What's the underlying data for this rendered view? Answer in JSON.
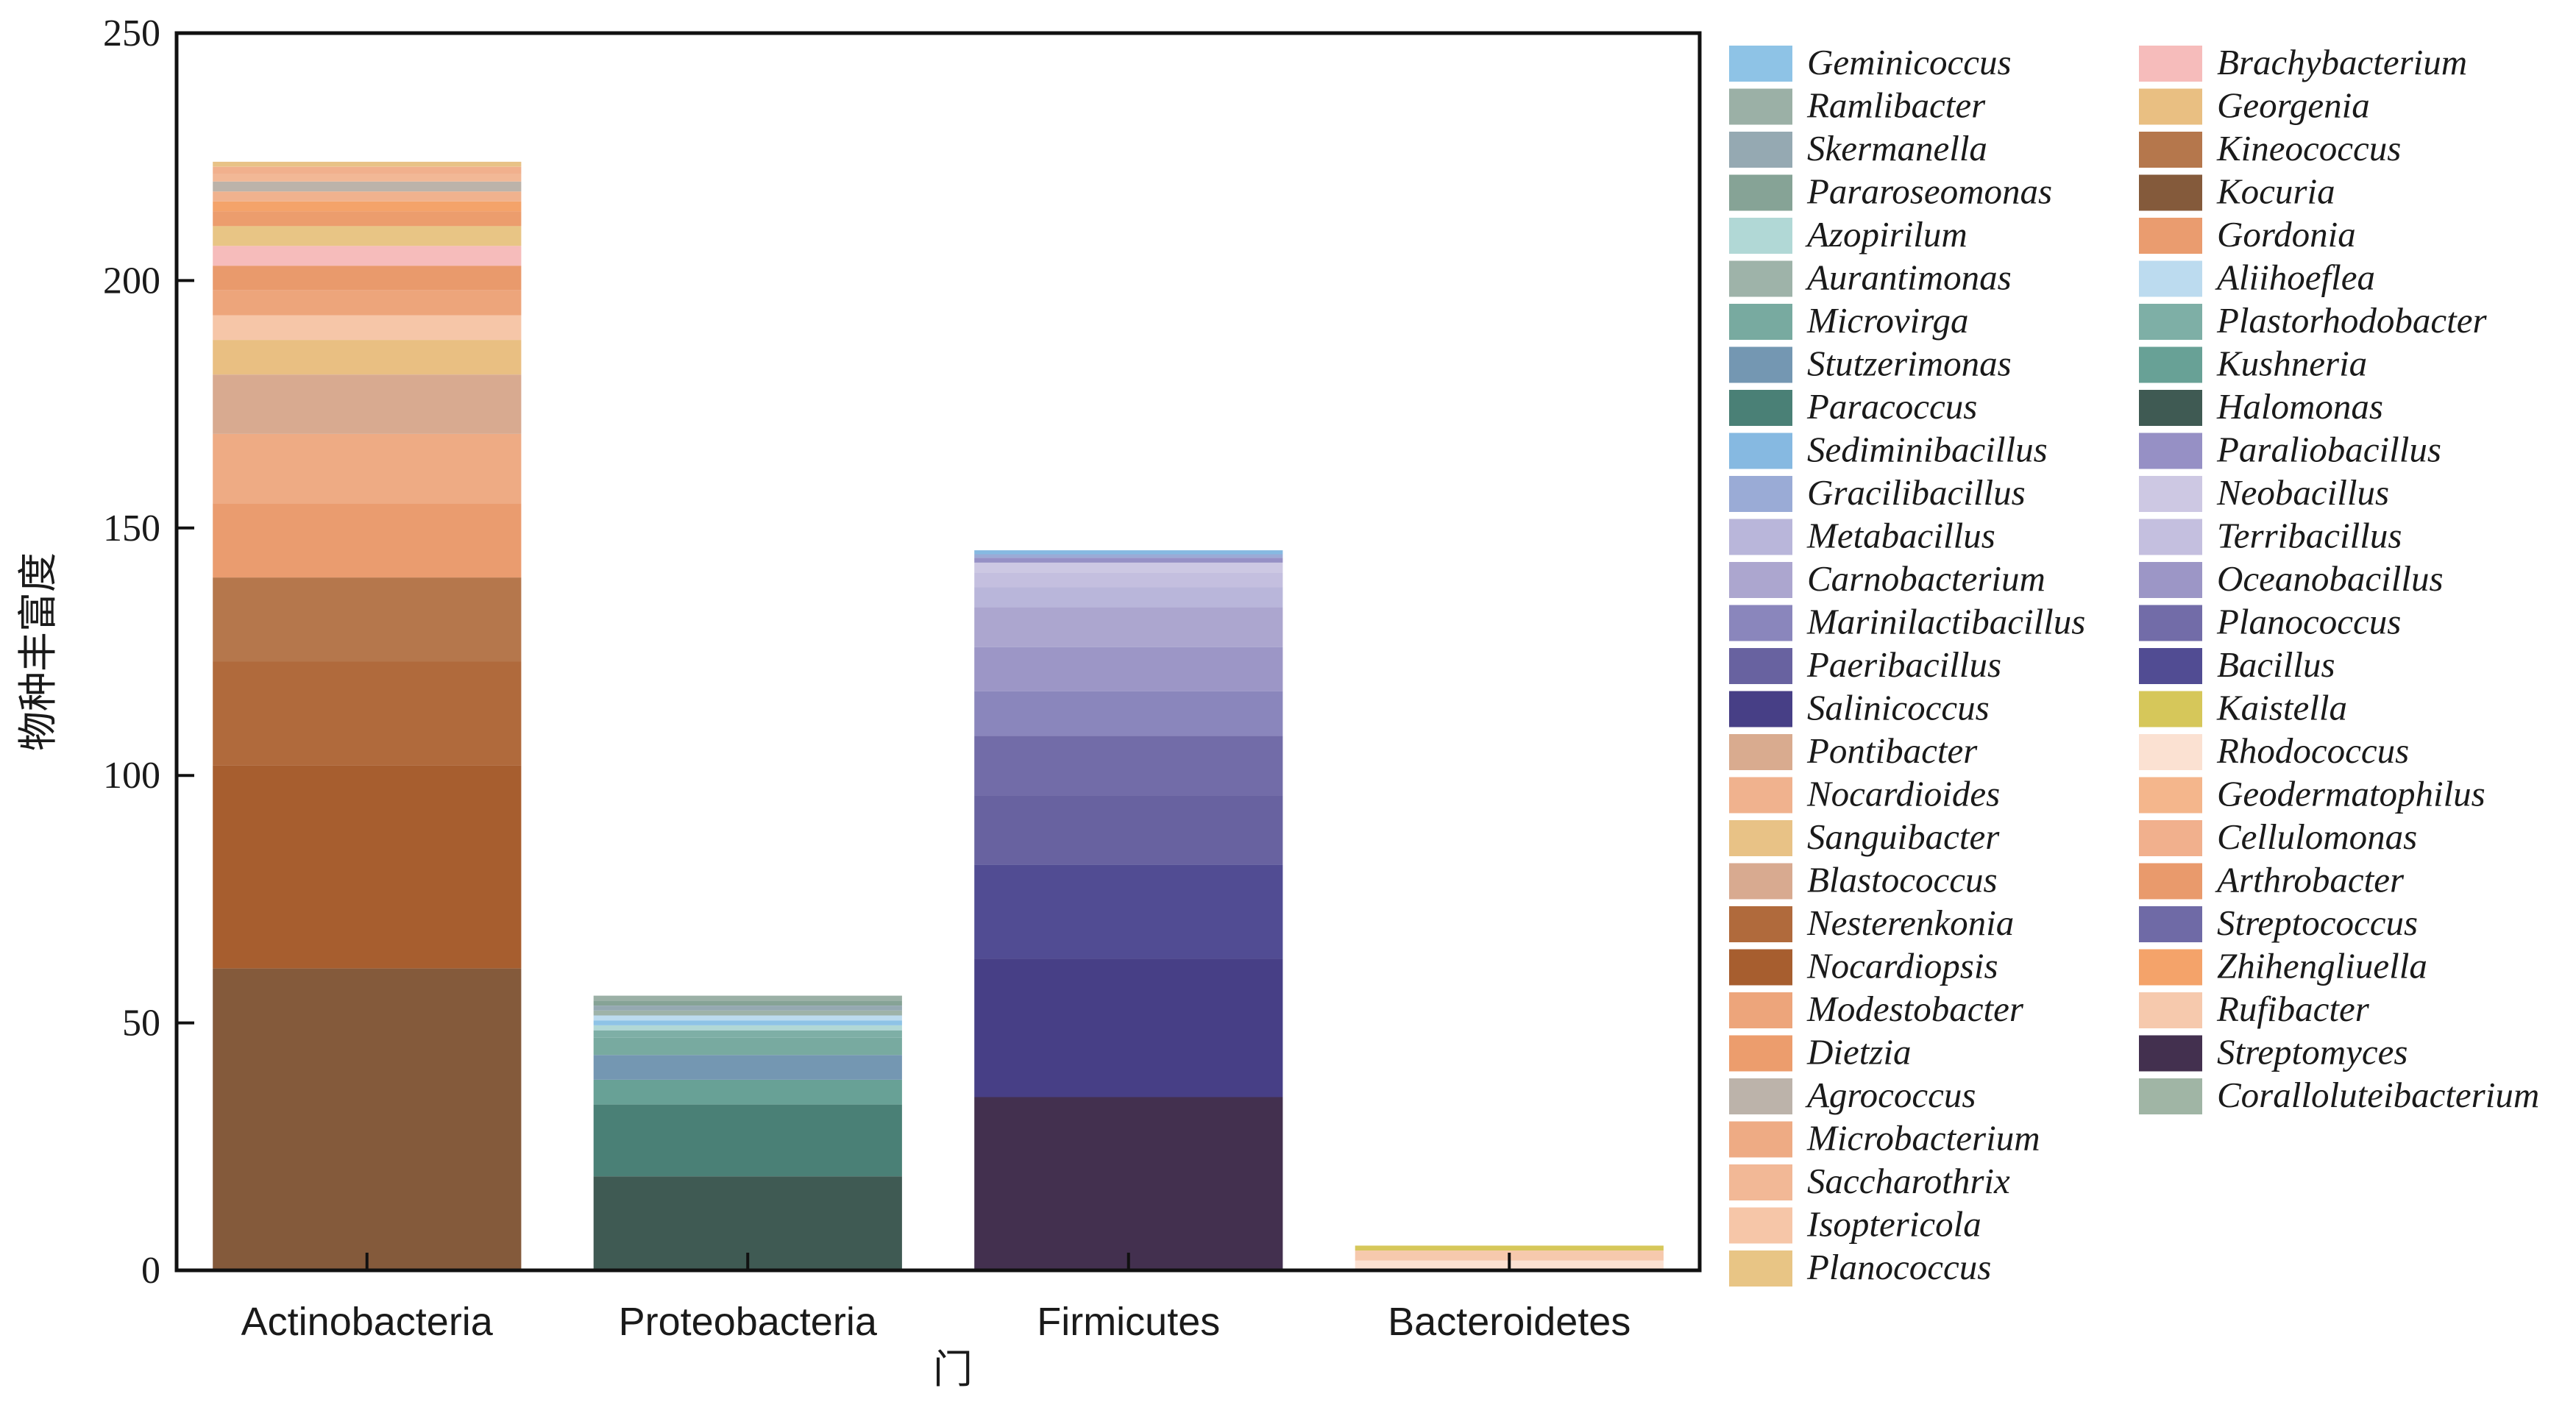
{
  "chart_data": {
    "type": "bar",
    "stacked": true,
    "title": "",
    "xlabel": "门",
    "ylabel": "物种丰富度",
    "ylim": [
      0,
      250
    ],
    "yticks": [
      0,
      50,
      100,
      150,
      200,
      250
    ],
    "grid": false,
    "legend_position": "right",
    "categories": [
      "Actinobacteria",
      "Proteobacteria",
      "Firmicutes",
      "Bacteroidetes"
    ],
    "stacks": [
      {
        "category": "Actinobacteria",
        "segments": [
          {
            "name": "Kocuria",
            "value": 61
          },
          {
            "name": "Nocardiopsis",
            "value": 41
          },
          {
            "name": "Nesterenkonia",
            "value": 21
          },
          {
            "name": "Kineococcus",
            "value": 17
          },
          {
            "name": "Gordonia",
            "value": 15
          },
          {
            "name": "Microbacterium",
            "value": 14
          },
          {
            "name": "Blastococcus",
            "value": 12
          },
          {
            "name": "Georgenia",
            "value": 7
          },
          {
            "name": "Isoptericola",
            "value": 5
          },
          {
            "name": "Modestobacter",
            "value": 5
          },
          {
            "name": "Arthrobacter",
            "value": 5
          },
          {
            "name": "Brachybacterium",
            "value": 4
          },
          {
            "name": "Planococcus",
            "value": 4
          },
          {
            "name": "Dietzia",
            "value": 3
          },
          {
            "name": "Zhihengliuella",
            "value": 2
          },
          {
            "name": "Nocardioides",
            "value": 2
          },
          {
            "name": "Agrococcus",
            "value": 2
          },
          {
            "name": "Saccharothrix",
            "value": 1.5
          },
          {
            "name": "Cellulomonas",
            "value": 1.5
          },
          {
            "name": "Sanguibacter",
            "value": 1
          }
        ]
      },
      {
        "category": "Proteobacteria",
        "segments": [
          {
            "name": "Halomonas",
            "value": 19
          },
          {
            "name": "Paracoccus",
            "value": 14.5
          },
          {
            "name": "Kushneria",
            "value": 5
          },
          {
            "name": "Stutzerimonas",
            "value": 5
          },
          {
            "name": "Microvirga",
            "value": 3.5
          },
          {
            "name": "Plastorhodobacter",
            "value": 1.5
          },
          {
            "name": "Azopirilum",
            "value": 1
          },
          {
            "name": "Geminicoccus",
            "value": 1
          },
          {
            "name": "Aliihoeflea",
            "value": 1
          },
          {
            "name": "Aurantimonas",
            "value": 1
          },
          {
            "name": "Skermanella",
            "value": 1
          },
          {
            "name": "Pararoseomonas",
            "value": 1
          },
          {
            "name": "Ramlibacter",
            "value": 1
          }
        ]
      },
      {
        "category": "Firmicutes",
        "segments": [
          {
            "name": "Streptomyces",
            "value": 35
          },
          {
            "name": "Salinicoccus",
            "value": 28
          },
          {
            "name": "Bacillus",
            "value": 19
          },
          {
            "name": "Paeribacillus",
            "value": 14
          },
          {
            "name": "Planococcus",
            "value": 12
          },
          {
            "name": "Marinilactibacillus",
            "value": 9
          },
          {
            "name": "Oceanobacillus",
            "value": 9
          },
          {
            "name": "Carnobacterium",
            "value": 8
          },
          {
            "name": "Metabacillus",
            "value": 4
          },
          {
            "name": "Terribacillus",
            "value": 3
          },
          {
            "name": "Neobacillus",
            "value": 2
          },
          {
            "name": "Paraliobacillus",
            "value": 1
          },
          {
            "name": "Gracilibacillus",
            "value": 0.7
          },
          {
            "name": "Sediminibacillus",
            "value": 0.8
          }
        ]
      },
      {
        "category": "Bacteroidetes",
        "segments": [
          {
            "name": "Rhodococcus",
            "value": 2
          },
          {
            "name": "Rufibacter",
            "value": 2
          },
          {
            "name": "Kaistella",
            "value": 1
          }
        ]
      }
    ],
    "legend": [
      {
        "name": "Geminicoccus",
        "color": "#8ec3e6"
      },
      {
        "name": "Ramlibacter",
        "color": "#9bb0a6"
      },
      {
        "name": "Skermanella",
        "color": "#95a9b2"
      },
      {
        "name": "Pararoseomonas",
        "color": "#86a396"
      },
      {
        "name": "Azopirilum",
        "color": "#b1d8d6"
      },
      {
        "name": "Aurantimonas",
        "color": "#9eb3a9"
      },
      {
        "name": "Microvirga",
        "color": "#78aaa0"
      },
      {
        "name": "Stutzerimonas",
        "color": "#7497b2"
      },
      {
        "name": "Paracoccus",
        "color": "#4a8076"
      },
      {
        "name": "Sediminibacillus",
        "color": "#86b9e1"
      },
      {
        "name": "Gracilibacillus",
        "color": "#9aabd6"
      },
      {
        "name": "Metabacillus",
        "color": "#b9b6da"
      },
      {
        "name": "Carnobacterium",
        "color": "#aca6cf"
      },
      {
        "name": "Marinilactibacillus",
        "color": "#8a86bc"
      },
      {
        "name": "Paeribacillus",
        "color": "#6862a0"
      },
      {
        "name": "Salinicoccus",
        "color": "#473f86"
      },
      {
        "name": "Pontibacter",
        "color": "#d9ab8f"
      },
      {
        "name": "Nocardioides",
        "color": "#f0b28e"
      },
      {
        "name": "Sanguibacter",
        "color": "#e8c286"
      },
      {
        "name": "Blastococcus",
        "color": "#d8aa90"
      },
      {
        "name": "Nesterenkonia",
        "color": "#b06a3c"
      },
      {
        "name": "Nocardiopsis",
        "color": "#a75e2f"
      },
      {
        "name": "Modestobacter",
        "color": "#eda57b"
      },
      {
        "name": "Dietzia",
        "color": "#ec9d6d"
      },
      {
        "name": "Agrococcus",
        "color": "#bcb3aa"
      },
      {
        "name": "Microbacterium",
        "color": "#eeab84"
      },
      {
        "name": "Saccharothrix",
        "color": "#f2b896"
      },
      {
        "name": "Isoptericola",
        "color": "#f6c6a8"
      },
      {
        "name": "Planococcus",
        "color": "#e8c585"
      },
      {
        "name": "Brachybacterium",
        "color": "#f6bcbb"
      },
      {
        "name": "Georgenia",
        "color": "#e9bf82"
      },
      {
        "name": "Kineococcus",
        "color": "#b5774c"
      },
      {
        "name": "Kocuria",
        "color": "#845a3b"
      },
      {
        "name": "Gordonia",
        "color": "#ea9c6f"
      },
      {
        "name": "Aliihoeflea",
        "color": "#bcdbef"
      },
      {
        "name": "Plastorhodobacter",
        "color": "#7eafa6"
      },
      {
        "name": "Kushneria",
        "color": "#68a196"
      },
      {
        "name": "Halomonas",
        "color": "#3f5a53"
      },
      {
        "name": "Paraliobacillus",
        "color": "#9690c5"
      },
      {
        "name": "Neobacillus",
        "color": "#cdc8e3"
      },
      {
        "name": "Terribacillus",
        "color": "#c4bfdf"
      },
      {
        "name": "Oceanobacillus",
        "color": "#9c96c6"
      },
      {
        "name": "Planococcus",
        "color": "#726ca8"
      },
      {
        "name": "Bacillus",
        "color": "#514c93"
      },
      {
        "name": "Kaistella",
        "color": "#d6c75a"
      },
      {
        "name": "Rhodococcus",
        "color": "#fbe1d2"
      },
      {
        "name": "Geodermatophilus",
        "color": "#f4b68c"
      },
      {
        "name": "Cellulomonas",
        "color": "#f1b08d"
      },
      {
        "name": "Arthrobacter",
        "color": "#e99a6c"
      },
      {
        "name": "Streptococcus",
        "color": "#6f6aa6"
      },
      {
        "name": "Zhihengliuella",
        "color": "#f4a36a"
      },
      {
        "name": "Rufibacter",
        "color": "#f6c9ad"
      },
      {
        "name": "Streptomyces",
        "color": "#43304f"
      },
      {
        "name": "Coralloluteibacterium",
        "color": "#a0b5a5"
      }
    ]
  }
}
